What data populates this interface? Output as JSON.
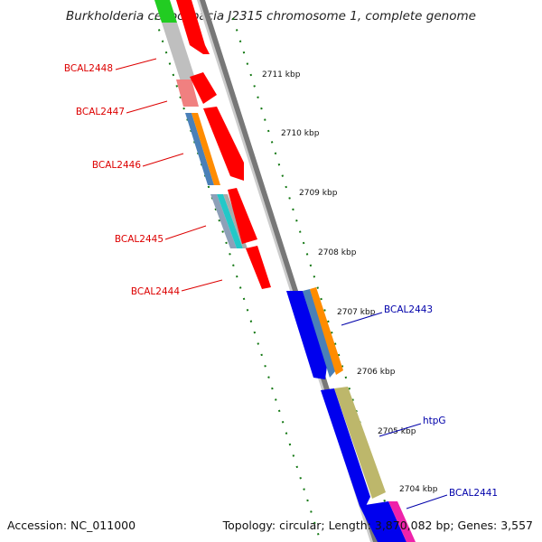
{
  "header": {
    "title": "Burkholderia cenocepacia J2315 chromosome 1, complete genome"
  },
  "footer": {
    "accession": "Accession: NC_011000",
    "summary": "Topology: circular; Length: 3,870,082 bp; Genes: 3,557"
  },
  "colors": {
    "label_red": "#dd0000",
    "label_blue": "#0000aa",
    "tick_green": "#117711",
    "backbone_gray": "#888888"
  },
  "ticks": [
    {
      "label": "2711 kbp"
    },
    {
      "label": "2710 kbp"
    },
    {
      "label": "2709 kbp"
    },
    {
      "label": "2708 kbp"
    },
    {
      "label": "2707 kbp"
    },
    {
      "label": "2706 kbp"
    },
    {
      "label": "2705 kbp"
    },
    {
      "label": "2704 kbp"
    }
  ],
  "gene_labels_left": [
    {
      "name": "BCAL2448"
    },
    {
      "name": "BCAL2447"
    },
    {
      "name": "BCAL2446"
    },
    {
      "name": "BCAL2445"
    },
    {
      "name": "BCAL2444"
    }
  ],
  "gene_labels_right": [
    {
      "name": "BCAL2443"
    },
    {
      "name": "htpG"
    },
    {
      "name": "BCAL2441"
    }
  ]
}
